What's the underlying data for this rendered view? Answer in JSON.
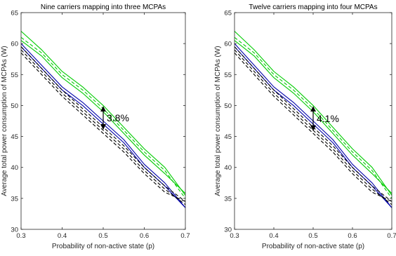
{
  "chart_data": [
    {
      "type": "line",
      "title": "Nine carriers mapping into three MCPAs",
      "xlabel": "Probability of non-active state (p)",
      "ylabel": "Average total power consumption of MCPAs (W)",
      "xlim": [
        0.3,
        0.7
      ],
      "ylim": [
        30,
        65
      ],
      "xticks": [
        "0.3",
        "0.4",
        "0.5",
        "0.6",
        "0.7"
      ],
      "yticks": [
        "30",
        "35",
        "40",
        "45",
        "50",
        "55",
        "60",
        "65"
      ],
      "grid": false,
      "annotation": {
        "text": "3.8%",
        "x": 0.5,
        "y_top": 49.8,
        "y_bottom": 46.2
      },
      "series": [
        {
          "color": "#00cc00",
          "dash": "solid",
          "x": [
            0.3,
            0.35,
            0.4,
            0.45,
            0.5,
            0.55,
            0.6,
            0.65,
            0.7
          ],
          "values": [
            62.0,
            59.0,
            55.5,
            53.0,
            50.0,
            46.5,
            43.0,
            40.0,
            35.5
          ]
        },
        {
          "color": "#00cc00",
          "dash": "dashed",
          "x": [
            0.3,
            0.35,
            0.4,
            0.45,
            0.5,
            0.55,
            0.6,
            0.65,
            0.7
          ],
          "values": [
            61.0,
            58.5,
            55.0,
            52.5,
            49.5,
            46.0,
            42.5,
            39.5,
            35.0
          ]
        },
        {
          "color": "#00cc00",
          "dash": "solid",
          "x": [
            0.3,
            0.35,
            0.4,
            0.45,
            0.5,
            0.55,
            0.6,
            0.65,
            0.7
          ],
          "values": [
            60.5,
            58.0,
            54.5,
            52.0,
            49.0,
            45.5,
            42.0,
            39.0,
            35.8
          ]
        },
        {
          "color": "#0000aa",
          "dash": "solid",
          "x": [
            0.3,
            0.35,
            0.4,
            0.45,
            0.5,
            0.55,
            0.6,
            0.65,
            0.7
          ],
          "values": [
            60.0,
            56.5,
            53.0,
            50.5,
            47.5,
            44.5,
            40.5,
            37.5,
            33.5
          ]
        },
        {
          "color": "#0000aa",
          "dash": "solid",
          "x": [
            0.3,
            0.35,
            0.4,
            0.45,
            0.5,
            0.55,
            0.6,
            0.65,
            0.7
          ],
          "values": [
            59.5,
            56.0,
            52.5,
            50.0,
            47.0,
            44.0,
            40.0,
            37.0,
            33.5
          ]
        },
        {
          "color": "#000000",
          "dash": "dashed",
          "x": [
            0.3,
            0.35,
            0.4,
            0.45,
            0.5,
            0.55,
            0.6,
            0.65,
            0.7
          ],
          "values": [
            59.5,
            56.0,
            52.5,
            49.5,
            46.5,
            43.5,
            40.0,
            37.0,
            34.5
          ]
        },
        {
          "color": "#000000",
          "dash": "dashed",
          "x": [
            0.3,
            0.35,
            0.4,
            0.45,
            0.5,
            0.55,
            0.6,
            0.65,
            0.7
          ],
          "values": [
            59.0,
            55.5,
            52.0,
            49.0,
            46.0,
            43.0,
            39.5,
            36.5,
            34.0
          ]
        },
        {
          "color": "#000000",
          "dash": "dashed",
          "x": [
            0.3,
            0.35,
            0.4,
            0.45,
            0.5,
            0.55,
            0.6,
            0.65,
            0.7
          ],
          "values": [
            58.5,
            55.0,
            51.5,
            48.5,
            45.5,
            42.5,
            39.0,
            36.0,
            34.5
          ]
        }
      ]
    },
    {
      "type": "line",
      "title": "Twelve carriers mapping into four MCPAs",
      "xlabel": "Probability of non-active state (p)",
      "ylabel": "Average total power consumption of MCPAs (W)",
      "xlim": [
        0.3,
        0.7
      ],
      "ylim": [
        30,
        65
      ],
      "xticks": [
        "0.3",
        "0.4",
        "0.5",
        "0.6",
        "0.7"
      ],
      "yticks": [
        "30",
        "35",
        "40",
        "45",
        "50",
        "55",
        "60",
        "65"
      ],
      "grid": false,
      "annotation": {
        "text": "4.1%",
        "x": 0.5,
        "y_top": 49.8,
        "y_bottom": 46.0
      },
      "series": [
        {
          "color": "#00cc00",
          "dash": "solid",
          "x": [
            0.3,
            0.35,
            0.4,
            0.45,
            0.5,
            0.55,
            0.6,
            0.65,
            0.7
          ],
          "values": [
            62.0,
            59.0,
            55.5,
            53.0,
            50.0,
            46.5,
            43.0,
            40.0,
            35.5
          ]
        },
        {
          "color": "#00cc00",
          "dash": "dashed",
          "x": [
            0.3,
            0.35,
            0.4,
            0.45,
            0.5,
            0.55,
            0.6,
            0.65,
            0.7
          ],
          "values": [
            61.0,
            58.5,
            55.0,
            52.5,
            49.5,
            46.0,
            42.5,
            39.5,
            35.0
          ]
        },
        {
          "color": "#00cc00",
          "dash": "solid",
          "x": [
            0.3,
            0.35,
            0.4,
            0.45,
            0.5,
            0.55,
            0.6,
            0.65,
            0.7
          ],
          "values": [
            60.5,
            58.0,
            54.5,
            52.0,
            49.0,
            45.5,
            42.0,
            39.0,
            35.8
          ]
        },
        {
          "color": "#0000aa",
          "dash": "solid",
          "x": [
            0.3,
            0.35,
            0.4,
            0.45,
            0.5,
            0.55,
            0.6,
            0.65,
            0.7
          ],
          "values": [
            60.0,
            56.5,
            53.0,
            50.5,
            47.5,
            44.5,
            40.5,
            37.5,
            33.5
          ]
        },
        {
          "color": "#0000aa",
          "dash": "solid",
          "x": [
            0.3,
            0.35,
            0.4,
            0.45,
            0.5,
            0.55,
            0.6,
            0.65,
            0.7
          ],
          "values": [
            59.5,
            56.0,
            52.5,
            50.0,
            47.0,
            44.0,
            40.0,
            37.0,
            33.5
          ]
        },
        {
          "color": "#000000",
          "dash": "dashed",
          "x": [
            0.3,
            0.35,
            0.4,
            0.45,
            0.5,
            0.55,
            0.6,
            0.65,
            0.7
          ],
          "values": [
            59.5,
            56.0,
            52.5,
            49.5,
            46.5,
            43.5,
            40.0,
            37.0,
            34.5
          ]
        },
        {
          "color": "#000000",
          "dash": "dashed",
          "x": [
            0.3,
            0.35,
            0.4,
            0.45,
            0.5,
            0.55,
            0.6,
            0.65,
            0.7
          ],
          "values": [
            59.0,
            55.5,
            52.0,
            49.0,
            46.0,
            43.0,
            39.5,
            36.5,
            34.0
          ]
        },
        {
          "color": "#000000",
          "dash": "dashed",
          "x": [
            0.3,
            0.35,
            0.4,
            0.45,
            0.5,
            0.55,
            0.6,
            0.65,
            0.7
          ],
          "values": [
            58.5,
            55.0,
            51.5,
            48.5,
            45.5,
            42.5,
            39.0,
            36.0,
            34.5
          ]
        }
      ]
    }
  ]
}
